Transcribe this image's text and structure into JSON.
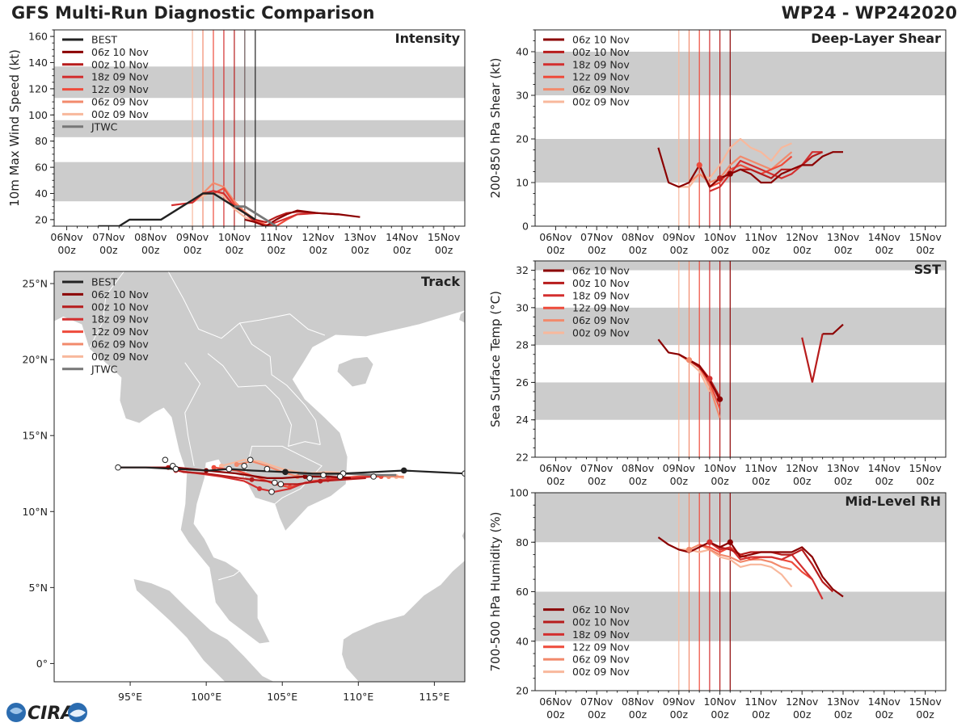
{
  "title": "GFS Multi-Run Diagnostic Comparison",
  "storm": "WP24 - WP242020",
  "logo_text": "CIRA",
  "time_ticks": [
    {
      "l1": "06Nov",
      "l2": "00z"
    },
    {
      "l1": "07Nov",
      "l2": "00z"
    },
    {
      "l1": "08Nov",
      "l2": "00z"
    },
    {
      "l1": "09Nov",
      "l2": "00z"
    },
    {
      "l1": "10Nov",
      "l2": "00z"
    },
    {
      "l1": "11Nov",
      "l2": "00z"
    },
    {
      "l1": "12Nov",
      "l2": "00z"
    },
    {
      "l1": "13Nov",
      "l2": "00z"
    },
    {
      "l1": "14Nov",
      "l2": "00z"
    },
    {
      "l1": "15Nov",
      "l2": "00z"
    }
  ],
  "runs": [
    {
      "name": "06z 10 Nov",
      "color": "#8b0000",
      "init": 4.25
    },
    {
      "name": "00z 10 Nov",
      "color": "#b71c1c",
      "init": 4.0
    },
    {
      "name": "18z 09 Nov",
      "color": "#d32f2f",
      "init": 3.75
    },
    {
      "name": "12z 09 Nov",
      "color": "#ee4b3b",
      "init": 3.5
    },
    {
      "name": "06z 09 Nov",
      "color": "#f28a6c",
      "init": 3.25
    },
    {
      "name": "00z 09 Nov",
      "color": "#f8b89c",
      "init": 3.0
    }
  ],
  "legend_extra": {
    "best": "BEST",
    "jtwc": "JTWC",
    "best_color": "#222222",
    "jtwc_color": "#777777"
  },
  "chart_data": [
    {
      "id": "intensity",
      "type": "line",
      "title": "Intensity",
      "ylabel": "10m Max Wind Speed (kt)",
      "xlim": [
        -0.3,
        9.5
      ],
      "ylim": [
        15,
        165
      ],
      "yticks": [
        20,
        40,
        60,
        80,
        100,
        120,
        140,
        160
      ],
      "bands": [
        [
          34,
          64
        ],
        [
          83,
          96
        ],
        [
          113,
          137
        ]
      ],
      "best": {
        "x": [
          0.75,
          1.25,
          1.5,
          2.0,
          2.25,
          2.75,
          3.0,
          3.25,
          3.5,
          4.0,
          4.25,
          4.5
        ],
        "y": [
          15,
          15,
          20,
          20,
          20,
          30,
          35,
          40,
          40,
          30,
          25,
          20
        ]
      },
      "jtwc": {
        "x": [
          4.0,
          4.25,
          4.5,
          4.75,
          5.0
        ],
        "y": [
          30,
          30,
          25,
          20,
          15
        ]
      },
      "series": [
        {
          "x": [
            4.25,
            4.5,
            4.75,
            5.0,
            5.25,
            5.5,
            6.0,
            6.5,
            7.0
          ],
          "y": [
            20,
            18,
            15,
            20,
            24,
            27,
            25,
            24,
            22
          ]
        },
        {
          "x": [
            4.0,
            4.25,
            4.5,
            4.75,
            5.0,
            5.25,
            5.5,
            6.0,
            6.5
          ],
          "y": [
            30,
            25,
            20,
            18,
            22,
            25,
            26,
            25,
            24
          ]
        },
        {
          "x": [
            2.5,
            3.0,
            3.25,
            3.5,
            3.75,
            4.0,
            4.25,
            4.5,
            4.75,
            5.0,
            5.5,
            6.0
          ],
          "y": [
            31,
            33,
            40,
            42,
            40,
            30,
            25,
            18,
            15,
            18,
            24,
            25
          ]
        },
        {
          "x": [
            3.5,
            3.75,
            4.0,
            4.25,
            4.5,
            4.75,
            5.0,
            5.25,
            5.5
          ],
          "y": [
            40,
            44,
            32,
            25,
            19,
            16,
            15,
            20,
            24
          ]
        },
        {
          "x": [
            3.25,
            3.5,
            3.75,
            4.0,
            4.25,
            4.5,
            4.75,
            5.0
          ],
          "y": [
            40,
            48,
            45,
            34,
            26,
            20,
            16,
            15
          ]
        },
        {
          "x": [
            3.0,
            3.25,
            3.5,
            3.75,
            4.0,
            4.25,
            4.5
          ],
          "y": [
            33,
            38,
            42,
            38,
            28,
            22,
            18
          ]
        }
      ],
      "legend": "upper left"
    },
    {
      "id": "shear",
      "type": "line",
      "title": "Deep-Layer Shear",
      "ylabel": "200-850 hPa Shear (kt)",
      "xlim": [
        -0.5,
        9.5
      ],
      "ylim": [
        0,
        45
      ],
      "yticks": [
        0,
        10,
        20,
        30,
        40
      ],
      "bands": [
        [
          10,
          20
        ],
        [
          30,
          40
        ]
      ],
      "series": [
        {
          "x": [
            2.5,
            2.75,
            3.0,
            3.25,
            3.5,
            3.75,
            4.0,
            4.25,
            4.5,
            4.75,
            5.0,
            5.25,
            5.5,
            5.75,
            6.0,
            6.25,
            6.5,
            6.75,
            7.0
          ],
          "y": [
            18,
            10,
            9,
            10,
            14,
            9,
            11,
            12,
            13,
            12,
            10,
            10,
            12,
            13,
            14,
            14,
            16,
            17,
            17
          ]
        },
        {
          "x": [
            4.0,
            4.25,
            4.5,
            4.75,
            5.0,
            5.25,
            5.5,
            5.75,
            6.0,
            6.25,
            6.5
          ],
          "y": [
            11,
            12,
            13,
            13,
            12,
            11,
            13,
            13,
            14,
            16,
            17
          ]
        },
        {
          "x": [
            3.75,
            4.0,
            4.25,
            4.5,
            4.75,
            5.0,
            5.25,
            5.5,
            5.75,
            6.0,
            6.25,
            6.5
          ],
          "y": [
            8,
            9,
            12,
            15,
            14,
            13,
            12,
            11,
            12,
            14,
            17,
            17
          ]
        },
        {
          "x": [
            3.5,
            3.75,
            4.0,
            4.25,
            4.5,
            4.75,
            5.0,
            5.25,
            5.5,
            5.75
          ],
          "y": [
            14,
            9,
            10,
            13,
            14,
            13,
            12,
            13,
            14,
            16
          ]
        },
        {
          "x": [
            3.25,
            3.5,
            3.75,
            4.0,
            4.25,
            4.5,
            4.75,
            5.0,
            5.25,
            5.5,
            5.75
          ],
          "y": [
            10,
            12,
            10,
            11,
            14,
            16,
            15,
            14,
            13,
            15,
            17
          ]
        },
        {
          "x": [
            3.0,
            3.25,
            3.5,
            3.75,
            4.0,
            4.25,
            4.5,
            4.75,
            5.0,
            5.25,
            5.5,
            5.75
          ],
          "y": [
            9,
            9,
            12,
            11,
            14,
            18,
            20,
            18,
            17,
            15,
            18,
            19
          ]
        }
      ],
      "dots": [
        [
          4.0,
          11,
          1
        ],
        [
          4.25,
          12,
          0
        ],
        [
          3.5,
          14,
          3
        ]
      ],
      "legend": "upper left"
    },
    {
      "id": "sst",
      "type": "line",
      "title": "SST",
      "ylabel": "Sea Surface Temp (°C)",
      "xlim": [
        -0.5,
        9.5
      ],
      "ylim": [
        22,
        32.5
      ],
      "yticks": [
        22,
        24,
        26,
        28,
        30,
        32
      ],
      "bands": [
        [
          24,
          26
        ],
        [
          28,
          30
        ],
        [
          32,
          33
        ]
      ],
      "series": [
        {
          "x": [
            2.5,
            2.75,
            3.0,
            3.25,
            3.5,
            3.75,
            4.0
          ],
          "y": [
            28.3,
            27.6,
            27.5,
            27.2,
            26.9,
            26.1,
            25.1
          ],
          "tail": {
            "x": [
              6.5,
              6.75,
              7.0
            ],
            "y": [
              28.6,
              28.6,
              29.1
            ]
          }
        },
        {
          "x": [
            3.0,
            3.25,
            3.5,
            3.75,
            4.0
          ],
          "y": [
            27.5,
            27.2,
            26.8,
            26.2,
            25.2
          ],
          "tail": {
            "x": [
              6.0,
              6.25,
              6.5
            ],
            "y": [
              28.4,
              26.0,
              28.6
            ]
          }
        },
        {
          "x": [
            3.0,
            3.25,
            3.5,
            3.75,
            4.0
          ],
          "y": [
            27.5,
            27.2,
            26.9,
            26.2,
            25.0
          ]
        },
        {
          "x": [
            3.0,
            3.25,
            3.5,
            3.75,
            4.0
          ],
          "y": [
            27.5,
            27.2,
            26.8,
            26.0,
            24.6
          ]
        },
        {
          "x": [
            3.0,
            3.25,
            3.5,
            3.75,
            4.0
          ],
          "y": [
            27.5,
            27.2,
            26.8,
            25.8,
            24.1
          ]
        },
        {
          "x": [
            3.0,
            3.25,
            3.5,
            3.75
          ],
          "y": [
            27.5,
            27.1,
            26.6,
            25.5
          ]
        }
      ],
      "dots": [
        [
          4.0,
          25.1,
          0
        ],
        [
          3.75,
          26.2,
          2
        ],
        [
          3.25,
          27.2,
          4
        ]
      ],
      "legend": "upper left"
    },
    {
      "id": "rh",
      "type": "line",
      "title": "Mid-Level RH",
      "ylabel": "700-500 hPa Humidity (%)",
      "xlim": [
        -0.5,
        9.5
      ],
      "ylim": [
        20,
        100
      ],
      "yticks": [
        20,
        40,
        60,
        80,
        100
      ],
      "bands": [
        [
          40,
          60
        ],
        [
          80,
          100
        ]
      ],
      "series": [
        {
          "x": [
            2.5,
            2.75,
            3.0,
            3.25,
            3.5,
            3.75,
            4.0,
            4.25,
            4.5,
            4.75,
            5.0,
            5.25,
            5.5,
            5.75,
            6.0,
            6.25,
            6.5,
            6.75,
            7.0
          ],
          "y": [
            82,
            79,
            77,
            76,
            78,
            80,
            78,
            80,
            74,
            75,
            76,
            76,
            76,
            76,
            78,
            74,
            66,
            61,
            58
          ]
        },
        {
          "x": [
            4.0,
            4.25,
            4.5,
            4.75,
            5.0,
            5.25,
            5.5,
            5.75,
            6.0,
            6.25,
            6.5,
            6.75
          ],
          "y": [
            78,
            77,
            75,
            76,
            76,
            76,
            75,
            75,
            77,
            71,
            64,
            60
          ]
        },
        {
          "x": [
            3.75,
            4.0,
            4.25,
            4.5,
            4.75,
            5.0,
            5.25,
            5.5,
            5.75,
            6.0,
            6.25,
            6.5
          ],
          "y": [
            80,
            77,
            78,
            73,
            74,
            74,
            74,
            73,
            75,
            70,
            65,
            57
          ]
        },
        {
          "x": [
            3.5,
            3.75,
            4.0,
            4.25,
            4.5,
            4.75,
            5.0,
            5.25,
            5.5,
            5.75,
            6.0,
            6.25
          ],
          "y": [
            79,
            78,
            76,
            78,
            75,
            73,
            74,
            74,
            73,
            72,
            68,
            65
          ]
        },
        {
          "x": [
            3.25,
            3.5,
            3.75,
            4.0,
            4.25,
            4.5,
            4.75,
            5.0,
            5.25,
            5.5,
            5.75
          ],
          "y": [
            77,
            79,
            77,
            75,
            74,
            72,
            73,
            73,
            72,
            70,
            69
          ]
        },
        {
          "x": [
            3.0,
            3.25,
            3.5,
            3.75,
            4.0,
            4.25,
            4.5,
            4.75,
            5.0,
            5.25,
            5.5,
            5.75
          ],
          "y": [
            77,
            77,
            76,
            77,
            74,
            73,
            70,
            71,
            71,
            70,
            67,
            62
          ]
        }
      ],
      "dots": [
        [
          4.25,
          80,
          0
        ],
        [
          3.75,
          80,
          2
        ],
        [
          3.25,
          77,
          4
        ]
      ],
      "legend": "lower left"
    },
    {
      "id": "track",
      "type": "scatter",
      "title": "Track",
      "xlabel": "",
      "ylabel": "",
      "xlim": [
        90,
        117
      ],
      "ylim": [
        -1.2,
        25.8
      ],
      "xticks": [
        {
          "v": 95,
          "l": "95°E"
        },
        {
          "v": 100,
          "l": "100°E"
        },
        {
          "v": 105,
          "l": "105°E"
        },
        {
          "v": 110,
          "l": "110°E"
        },
        {
          "v": 115,
          "l": "115°E"
        }
      ],
      "yticks": [
        {
          "v": 0,
          "l": "0°"
        },
        {
          "v": 5,
          "l": "5°N"
        },
        {
          "v": 10,
          "l": "10°N"
        },
        {
          "v": 15,
          "l": "15°N"
        },
        {
          "v": 20,
          "l": "20°N"
        },
        {
          "v": 25,
          "l": "25°N"
        }
      ],
      "best": {
        "lon": [
          117,
          115,
          113,
          111,
          109,
          107,
          105.2,
          103,
          101.5,
          100.2,
          98,
          96,
          94.2
        ],
        "lat": [
          12.5,
          12.6,
          12.7,
          12.6,
          12.5,
          12.5,
          12.6,
          12.7,
          12.8,
          12.7,
          12.8,
          12.9,
          12.9
        ]
      },
      "jtwc": {
        "lon": [
          112.5,
          111,
          109,
          107.5,
          106
        ],
        "lat": [
          12.4,
          12.4,
          12.5,
          12.4,
          12.5
        ]
      },
      "series": [
        {
          "lon": [
            94.2,
            96,
            98,
            99,
            100,
            102,
            104,
            105,
            106.5,
            108,
            109.5
          ],
          "lat": [
            12.9,
            12.9,
            12.9,
            12.8,
            12.7,
            12.5,
            12.2,
            12.2,
            12.3,
            12.3,
            12.2
          ]
        },
        {
          "lon": [
            97.5,
            98.5,
            100,
            101.5,
            103,
            104,
            105,
            106,
            107.5,
            109,
            110.5
          ],
          "lat": [
            12.9,
            12.6,
            12.5,
            12.3,
            12.1,
            12.0,
            11.8,
            11.8,
            12.0,
            12.1,
            12.2
          ]
        },
        {
          "lon": [
            98,
            99.5,
            101,
            102.5,
            103.5,
            104.5,
            105.5,
            106.5,
            108,
            109.5,
            111
          ],
          "lat": [
            12.7,
            12.5,
            12.3,
            12.0,
            11.5,
            11.3,
            11.5,
            11.9,
            12.1,
            12.2,
            12.3
          ]
        },
        {
          "lon": [
            100.5,
            102,
            103.5,
            104.5,
            105.5,
            107,
            108.5,
            110,
            111.5
          ],
          "lat": [
            12.9,
            12.7,
            12.2,
            11.8,
            11.6,
            12.0,
            12.2,
            12.3,
            12.3
          ]
        },
        {
          "lon": [
            102,
            103,
            104,
            105,
            106,
            107.5,
            109,
            110.5,
            112,
            113
          ],
          "lat": [
            13.1,
            13.3,
            13.0,
            12.6,
            12.3,
            12.4,
            12.5,
            12.4,
            12.3,
            12.3
          ]
        },
        {
          "lon": [
            101,
            102.5,
            103.5,
            105,
            106.5,
            108,
            109.5,
            111,
            112.5,
            113
          ],
          "lat": [
            13.0,
            13.4,
            13.3,
            12.8,
            12.5,
            12.6,
            12.5,
            12.4,
            12.3,
            12.2
          ]
        }
      ],
      "legend": "upper left"
    }
  ]
}
